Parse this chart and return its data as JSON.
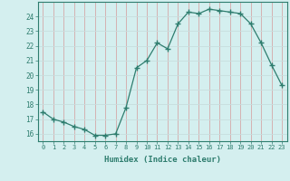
{
  "x": [
    0,
    1,
    2,
    3,
    4,
    5,
    6,
    7,
    8,
    9,
    10,
    11,
    12,
    13,
    14,
    15,
    16,
    17,
    18,
    19,
    20,
    21,
    22,
    23
  ],
  "y": [
    17.5,
    17.0,
    16.8,
    16.5,
    16.3,
    15.9,
    15.9,
    16.0,
    17.8,
    20.5,
    21.0,
    22.2,
    21.8,
    23.5,
    24.3,
    24.2,
    24.5,
    24.4,
    24.3,
    24.2,
    23.5,
    22.2,
    20.7,
    19.3
  ],
  "xlabel": "Humidex (Indice chaleur)",
  "xlim": [
    -0.5,
    23.5
  ],
  "ylim": [
    15.5,
    25.0
  ],
  "yticks": [
    16,
    17,
    18,
    19,
    20,
    21,
    22,
    23,
    24
  ],
  "xticks": [
    0,
    1,
    2,
    3,
    4,
    5,
    6,
    7,
    8,
    9,
    10,
    11,
    12,
    13,
    14,
    15,
    16,
    17,
    18,
    19,
    20,
    21,
    22,
    23
  ],
  "line_color": "#2e7d6e",
  "marker_color": "#2e7d6e",
  "bg_color": "#d4efef",
  "vgrid_color": "#d4a8a8",
  "hgrid_color": "#c8dede",
  "axis_color": "#2e7d6e",
  "tick_color": "#2e7d6e",
  "xlabel_color": "#2e7d6e"
}
